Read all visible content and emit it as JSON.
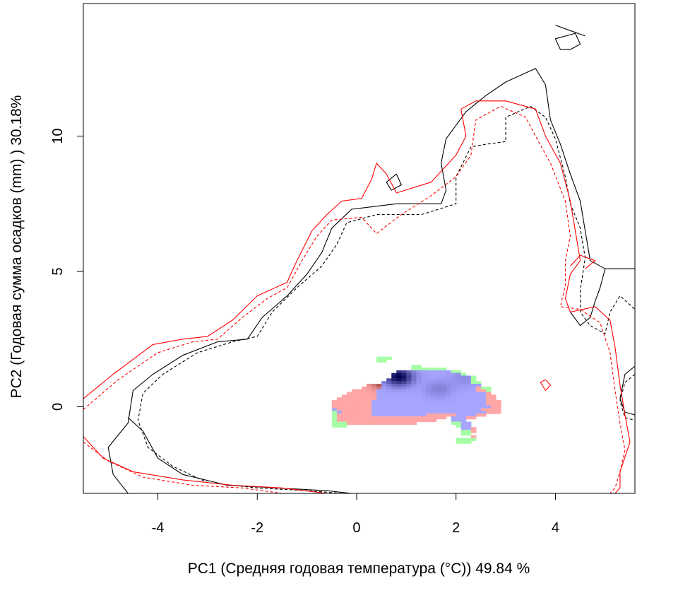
{
  "chart_data": {
    "type": "heatmap",
    "xlabel": "PC1 (Средняя годовая температура (°C)) 49.84 %",
    "ylabel": "PC2 (Годовая сумма осадков  (mm) ) 30.18%",
    "xlim": [
      -5.5,
      5.6
    ],
    "ylim": [
      -3.2,
      14.9
    ],
    "x_ticks": [
      "-4",
      "-2",
      "0",
      "2",
      "4"
    ],
    "y_ticks": [
      "0",
      "5",
      "10"
    ],
    "x_tick_values": [
      -4,
      -2,
      0,
      2,
      4
    ],
    "y_tick_values": [
      0,
      5,
      10
    ],
    "grid": false,
    "legend": "none",
    "colors": {
      "contour_a": "#000000",
      "contour_b": "#ff0000",
      "overlap_low": "#a6a6ff",
      "overlap_high": "#000050",
      "only_a": "#ffa6a6",
      "only_a_peak": "#5a0000",
      "only_b": "#a6ffa6"
    },
    "contours": [
      {
        "color": "#000000",
        "dash": "solid",
        "points": [
          [
            -4.6,
            -3.2
          ],
          [
            -4.9,
            -2.5
          ],
          [
            -5.0,
            -1.5
          ],
          [
            -4.6,
            -0.6
          ],
          [
            -4.5,
            0.6
          ],
          [
            -4.1,
            1.2
          ],
          [
            -3.5,
            1.9
          ],
          [
            -2.8,
            2.4
          ],
          [
            -2.2,
            2.5
          ],
          [
            -1.9,
            3.3
          ],
          [
            -1.4,
            4.1
          ],
          [
            -1.0,
            4.9
          ],
          [
            -0.7,
            5.7
          ],
          [
            -0.5,
            6.6
          ],
          [
            -0.1,
            7.3
          ],
          [
            0.8,
            7.5
          ],
          [
            1.7,
            7.5
          ],
          [
            1.8,
            8.0
          ],
          [
            1.7,
            9.0
          ],
          [
            1.8,
            9.9
          ],
          [
            2.2,
            10.9
          ],
          [
            2.6,
            11.5
          ],
          [
            3.0,
            12.0
          ],
          [
            3.6,
            12.5
          ],
          [
            3.8,
            11.9
          ],
          [
            3.9,
            10.6
          ],
          [
            4.1,
            9.7
          ],
          [
            4.3,
            8.6
          ],
          [
            4.5,
            7.6
          ],
          [
            4.6,
            6.5
          ],
          [
            4.7,
            5.4
          ],
          [
            5.0,
            5.1
          ],
          [
            5.6,
            5.1
          ]
        ]
      },
      {
        "color": "#000000",
        "dash": "solid",
        "points": [
          [
            -0.1,
            -3.2
          ],
          [
            -0.6,
            -3.1
          ],
          [
            -1.6,
            -3.0
          ],
          [
            -2.6,
            -2.9
          ],
          [
            -3.5,
            -2.5
          ],
          [
            -4.0,
            -1.9
          ],
          [
            -4.3,
            -0.9
          ],
          [
            -4.6,
            -0.4
          ]
        ]
      },
      {
        "color": "#000000",
        "dash": "solid",
        "points": [
          [
            4.3,
            3.5
          ],
          [
            4.5,
            3.0
          ],
          [
            4.7,
            3.3
          ],
          [
            4.8,
            3.9
          ],
          [
            4.9,
            4.4
          ],
          [
            5.0,
            5.1
          ]
        ]
      },
      {
        "color": "#000000",
        "dash": "solid",
        "points": [
          [
            5.6,
            1.5
          ],
          [
            5.4,
            1.2
          ],
          [
            5.3,
            0.3
          ],
          [
            5.4,
            -0.2
          ],
          [
            5.6,
            -0.3
          ]
        ]
      },
      {
        "color": "#000000",
        "dash": "solid",
        "points": [
          [
            4.0,
            14.1
          ],
          [
            4.3,
            13.9
          ],
          [
            4.6,
            13.7
          ]
        ]
      },
      {
        "color": "#000000",
        "dash": "solid",
        "points": [
          [
            4.1,
            13.2
          ],
          [
            4.0,
            13.6
          ],
          [
            4.4,
            13.8
          ],
          [
            4.5,
            13.4
          ],
          [
            4.3,
            13.2
          ],
          [
            4.1,
            13.2
          ]
        ]
      },
      {
        "color": "#000000",
        "dash": "solid",
        "points": [
          [
            0.6,
            8.3
          ],
          [
            0.8,
            8.6
          ],
          [
            0.9,
            8.2
          ],
          [
            0.7,
            8.0
          ],
          [
            0.6,
            8.3
          ]
        ]
      },
      {
        "color": "#000000",
        "dash": "dashed",
        "points": [
          [
            -0.3,
            -3.2
          ],
          [
            -1.0,
            -3.1
          ],
          [
            -2.0,
            -3.0
          ],
          [
            -3.0,
            -2.8
          ],
          [
            -3.7,
            -2.2
          ],
          [
            -4.2,
            -1.5
          ],
          [
            -4.4,
            -0.5
          ],
          [
            -4.3,
            0.5
          ],
          [
            -3.9,
            1.2
          ],
          [
            -3.2,
            2.0
          ],
          [
            -2.5,
            2.4
          ],
          [
            -2.0,
            2.6
          ],
          [
            -1.7,
            3.5
          ],
          [
            -1.2,
            4.4
          ],
          [
            -0.7,
            5.2
          ],
          [
            -0.4,
            6.0
          ],
          [
            -0.2,
            6.8
          ],
          [
            0.4,
            7.1
          ],
          [
            1.3,
            7.1
          ],
          [
            2.0,
            7.5
          ],
          [
            2.0,
            8.5
          ],
          [
            2.3,
            9.6
          ],
          [
            2.6,
            9.7
          ],
          [
            3.0,
            9.8
          ],
          [
            3.0,
            10.7
          ],
          [
            3.5,
            11.1
          ],
          [
            3.8,
            10.7
          ],
          [
            4.0,
            9.9
          ],
          [
            4.2,
            8.5
          ],
          [
            4.3,
            7.5
          ],
          [
            4.5,
            6.6
          ],
          [
            4.6,
            5.5
          ],
          [
            4.5,
            4.3
          ],
          [
            4.5,
            3.5
          ],
          [
            4.7,
            3.0
          ],
          [
            5.0,
            2.7
          ],
          [
            5.1,
            3.5
          ],
          [
            5.3,
            4.1
          ],
          [
            5.6,
            3.6
          ]
        ]
      },
      {
        "color": "#000000",
        "dash": "dashed",
        "points": [
          [
            5.6,
            1.2
          ],
          [
            5.4,
            0.9
          ],
          [
            5.3,
            0.2
          ],
          [
            5.4,
            -0.4
          ],
          [
            5.6,
            -0.5
          ]
        ]
      },
      {
        "color": "#ff0000",
        "dash": "solid",
        "points": [
          [
            -5.5,
            0.3
          ],
          [
            -4.9,
            1.2
          ],
          [
            -4.1,
            2.3
          ],
          [
            -3.5,
            2.5
          ],
          [
            -3.0,
            2.6
          ],
          [
            -2.5,
            3.2
          ],
          [
            -2.0,
            4.1
          ],
          [
            -1.4,
            4.6
          ],
          [
            -1.2,
            5.4
          ],
          [
            -0.9,
            6.5
          ],
          [
            -0.6,
            7.1
          ],
          [
            -0.3,
            7.6
          ],
          [
            0.1,
            7.7
          ],
          [
            0.3,
            8.4
          ],
          [
            0.4,
            9.0
          ],
          [
            0.6,
            8.6
          ],
          [
            0.8,
            7.9
          ],
          [
            1.5,
            8.3
          ],
          [
            2.0,
            9.3
          ],
          [
            2.2,
            10.0
          ],
          [
            2.1,
            11.0
          ],
          [
            2.4,
            11.3
          ],
          [
            3.0,
            11.3
          ],
          [
            3.6,
            11.0
          ],
          [
            3.8,
            10.0
          ],
          [
            4.1,
            9.0
          ],
          [
            4.3,
            7.6
          ],
          [
            4.4,
            6.5
          ],
          [
            4.5,
            5.4
          ],
          [
            4.3,
            4.9
          ],
          [
            4.2,
            4.0
          ],
          [
            4.3,
            3.5
          ],
          [
            4.8,
            3.7
          ],
          [
            5.1,
            3.2
          ],
          [
            5.2,
            2.2
          ],
          [
            5.3,
            0.8
          ],
          [
            5.4,
            -0.3
          ],
          [
            5.5,
            -1.3
          ],
          [
            5.3,
            -2.4
          ],
          [
            5.3,
            -3.0
          ],
          [
            5.2,
            -3.2
          ]
        ]
      },
      {
        "color": "#ff0000",
        "dash": "solid",
        "points": [
          [
            -5.5,
            -1.1
          ],
          [
            -5.1,
            -1.9
          ],
          [
            -4.5,
            -2.4
          ],
          [
            -3.5,
            -2.7
          ],
          [
            -2.5,
            -2.9
          ],
          [
            -1.5,
            -3.0
          ],
          [
            -0.6,
            -3.2
          ]
        ]
      },
      {
        "color": "#ff0000",
        "dash": "dashed",
        "points": [
          [
            -5.5,
            -0.1
          ],
          [
            -4.8,
            1.0
          ],
          [
            -4.0,
            2.0
          ],
          [
            -3.3,
            2.4
          ],
          [
            -2.8,
            2.5
          ],
          [
            -2.3,
            3.3
          ],
          [
            -1.8,
            4.0
          ],
          [
            -1.4,
            4.4
          ],
          [
            -1.1,
            5.4
          ],
          [
            -0.8,
            6.3
          ],
          [
            -0.5,
            6.9
          ],
          [
            0.1,
            7.0
          ],
          [
            0.4,
            6.4
          ],
          [
            0.9,
            7.1
          ],
          [
            1.5,
            7.8
          ],
          [
            2.0,
            8.5
          ],
          [
            2.3,
            9.3
          ],
          [
            2.4,
            10.6
          ],
          [
            2.9,
            11.1
          ],
          [
            3.4,
            10.7
          ],
          [
            3.6,
            10.0
          ],
          [
            3.9,
            9.0
          ],
          [
            4.2,
            7.6
          ],
          [
            4.3,
            6.3
          ],
          [
            4.2,
            5.4
          ],
          [
            4.2,
            4.5
          ],
          [
            4.1,
            3.7
          ],
          [
            4.5,
            3.6
          ],
          [
            4.9,
            3.1
          ],
          [
            5.1,
            2.0
          ],
          [
            5.2,
            0.6
          ],
          [
            5.3,
            -0.6
          ],
          [
            5.4,
            -1.6
          ],
          [
            5.3,
            -2.4
          ],
          [
            5.2,
            -3.0
          ],
          [
            5.1,
            -3.2
          ]
        ]
      },
      {
        "color": "#ff0000",
        "dash": "dashed",
        "points": [
          [
            -5.5,
            -1.3
          ],
          [
            -5.0,
            -2.0
          ],
          [
            -4.3,
            -2.6
          ],
          [
            -3.3,
            -2.9
          ],
          [
            -2.3,
            -3.0
          ],
          [
            -1.5,
            -3.2
          ]
        ]
      },
      {
        "color": "#ff0000",
        "dash": "solid",
        "points": [
          [
            3.8,
            1.0
          ],
          [
            3.9,
            0.8
          ],
          [
            3.8,
            0.6
          ],
          [
            3.7,
            0.9
          ],
          [
            3.8,
            1.0
          ]
        ]
      },
      {
        "color": "#ff0000",
        "dash": "solid",
        "points": [
          [
            4.3,
            5.2
          ],
          [
            4.5,
            5.6
          ],
          [
            4.8,
            5.4
          ],
          [
            4.6,
            5.1
          ]
        ]
      }
    ],
    "heatmap_grid": {
      "x_start": -0.5,
      "y_start": -1.35,
      "cell_dx": 0.1,
      "cell_dy": 0.1,
      "rows": [
        "         GGG                         ",
        "         GG                          ",
        "                                     ",
        "                GG                   ",
        "                GGGGGGG              ",
        "             BBBBBBBBBBBGG           ",
        "            BBBBBBBBBBBBBBG          ",
        "            BBBBBBBBBBBBBBBBG        ",
        "           BBBBBBBBBBBBBBBBBG        ",
        "          BBBBBBBBBBBBBBBBBBGG       ",
        "       RRRBBBBBBBBBBBBBBBBBBBB       ",
        "      RRRRBBBBBBBBBBBBBBBBBBBRGG     ",
        "    RRRRRBBBBBBBBBBBBBBBBBBBBRRG     ",
        "   RRRRRRBBBBBBBBBBBBBBBBBBBBBBR     ",
        "  RRRRRRRBBBBBBBBBBBBBBBBBBBBBBRR    ",
        " RRRRRRRRBBBBBBBBBBBBBBBBBBBBBBRR    ",
        "RRRRRRRRBBBBBBBBBBBBBBBBBBBBBBBRRR   ",
        "RRRRRRRRBBBBBBBBBBBBBBBBBBBBBBBRRR   ",
        "RRRRRRRRBBBBBBBBBBBBBBBBBBBBBBBBRR   ",
        "BRRRRRRRBBBBBBBBBBBBBBBBBBBBBBRRRR   ",
        "GBRRRRRRBBBBBBBBBBBBBBBBBBBBBBBRRR   ",
        "GRRRRRRRBBBBBBBBBBBRRRRRRBBBBRR      ",
        "GRRRRRRRRRRRRRRRRRRRRRR BBBRR        ",
        "GRRRRRRRRRRRRRRRRRRRR   BBB          ",
        "GGGRRRRRRRRRRRRRR       GGBB         ",
        "GGG                      GBB         ",
        "                          BBR        ",
        "                          GGR        ",
        "                          GG         ",
        "                            R        ",
        "                         GGGG        ",
        "                         GGG         "
      ],
      "legend_codes": {
        "B": "overlap",
        "R": "only_a",
        "G": "only_b"
      }
    },
    "density_peaks": [
      {
        "category": "overlap",
        "x": 0.8,
        "y": 1.05,
        "strength": 1.0
      },
      {
        "category": "overlap",
        "x": 1.6,
        "y": 0.6,
        "strength": 0.22
      },
      {
        "category": "overlap",
        "x": 2.1,
        "y": 1.0,
        "strength": 0.15
      },
      {
        "category": "only_a",
        "x": 0.55,
        "y": 0.95,
        "strength": 0.9
      }
    ]
  }
}
